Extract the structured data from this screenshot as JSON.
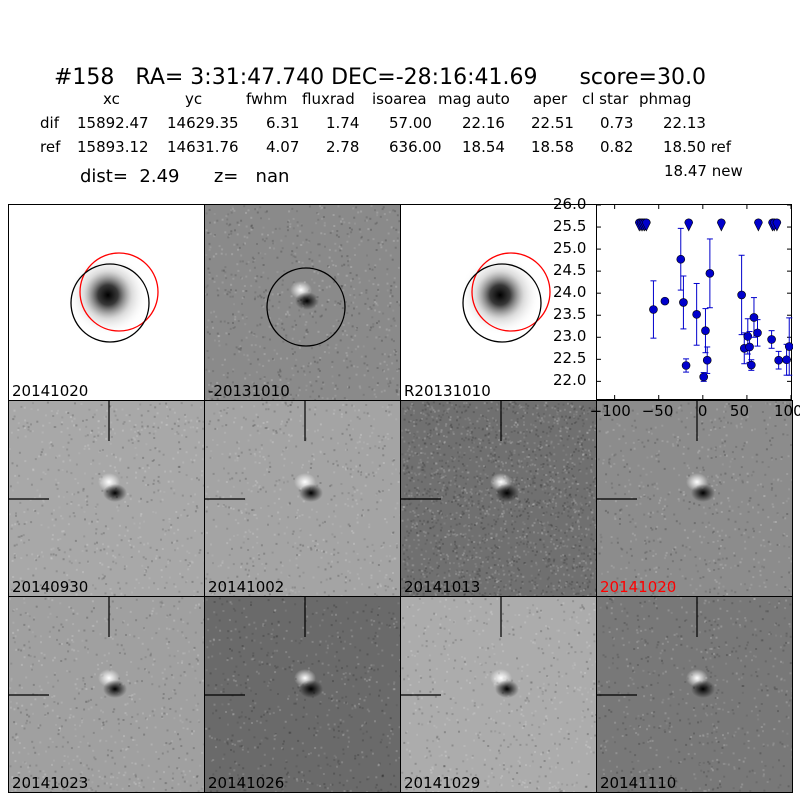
{
  "header": {
    "id": "#158",
    "ra": "RA= 3:31:47.740",
    "dec": "DEC=-28:16:41.69",
    "score": "score=30.0"
  },
  "stats": {
    "columns": [
      "xc",
      "yc",
      "fwhm",
      "fluxrad",
      "isoarea",
      "mag auto",
      "aper",
      "cl star",
      "phmag"
    ],
    "rows": [
      {
        "label": "dif",
        "values": [
          "15892.47",
          "14629.35",
          "6.31",
          "1.74",
          "57.00",
          "22.16",
          "22.51",
          "0.73",
          "22.13"
        ]
      },
      {
        "label": "ref",
        "values": [
          "15893.12",
          "14631.76",
          "4.07",
          "2.78",
          "636.00",
          "18.54",
          "18.58",
          "0.82",
          "18.50 ref"
        ]
      }
    ],
    "new_mag": "18.47 new",
    "dist_label": "dist=",
    "dist_value": "2.49",
    "z_label": "z=",
    "z_value": "nan"
  },
  "top_panels": [
    {
      "label": "20141020",
      "background": "#ffffff",
      "circles": [
        "red",
        "black"
      ]
    },
    {
      "label": "-20131010",
      "background": "#8a8a8a",
      "circles": [
        "black"
      ]
    },
    {
      "label": "R20131010",
      "background": "#ffffff",
      "circles": [
        "red",
        "black"
      ]
    }
  ],
  "stamps": [
    {
      "label": "20140930",
      "background": "#a8a8a8",
      "highlight": false
    },
    {
      "label": "20141002",
      "background": "#a4a4a4",
      "highlight": false
    },
    {
      "label": "20141013",
      "background": "#707070",
      "highlight": false
    },
    {
      "label": "20141020",
      "background": "#8c8c8c",
      "highlight": true
    },
    {
      "label": "20141023",
      "background": "#a0a0a0",
      "highlight": false
    },
    {
      "label": "20141026",
      "background": "#6a6a6a",
      "highlight": false
    },
    {
      "label": "20141029",
      "background": "#acacac",
      "highlight": false
    },
    {
      "label": "20141110",
      "background": "#787878",
      "highlight": false
    }
  ],
  "colors": {
    "highlight_label": "#ff0000",
    "point": "#0000cc"
  },
  "chart_data": {
    "type": "scatter",
    "title": "",
    "xlabel": "",
    "ylabel": "",
    "xlim": [
      -120,
      100
    ],
    "ylim": [
      26.0,
      21.6
    ],
    "y_inverted": true,
    "xticks": [
      -100,
      -50,
      0,
      50,
      100
    ],
    "yticks": [
      22.0,
      22.5,
      23.0,
      23.5,
      24.0,
      24.5,
      25.0,
      25.5,
      26.0
    ],
    "tick_labels_x": [
      "−100",
      "−50",
      "0",
      "50",
      "100"
    ],
    "tick_labels_y": [
      "22.0",
      "22.5",
      "23.0",
      "23.5",
      "24.0",
      "24.5",
      "25.0",
      "25.5",
      "26.0"
    ],
    "detections": [
      {
        "x": -56,
        "y": 23.63,
        "err": 0.65
      },
      {
        "x": -43,
        "y": 23.82,
        "err": 0
      },
      {
        "x": -25,
        "y": 24.77,
        "err": 0.7
      },
      {
        "x": -22,
        "y": 23.79,
        "err": 0.6
      },
      {
        "x": -19,
        "y": 22.36,
        "err": 0.15
      },
      {
        "x": -7,
        "y": 23.52,
        "err": 0.7
      },
      {
        "x": 1,
        "y": 22.1,
        "err": 0.1
      },
      {
        "x": 3,
        "y": 23.15,
        "err": 0.5
      },
      {
        "x": 5,
        "y": 22.48,
        "err": 0.3
      },
      {
        "x": 8,
        "y": 24.45,
        "err": 0.78
      },
      {
        "x": 44,
        "y": 23.96,
        "err": 0.9
      },
      {
        "x": 47,
        "y": 22.75,
        "err": 0.35
      },
      {
        "x": 51,
        "y": 23.02,
        "err": 0.4
      },
      {
        "x": 53,
        "y": 22.78,
        "err": 0.35
      },
      {
        "x": 55,
        "y": 22.37,
        "err": 0.12
      },
      {
        "x": 58,
        "y": 23.45,
        "err": 0.45
      },
      {
        "x": 62,
        "y": 23.1,
        "err": 0.3
      },
      {
        "x": 78,
        "y": 22.95,
        "err": 0.2
      },
      {
        "x": 86,
        "y": 22.48,
        "err": 0.2
      },
      {
        "x": 95,
        "y": 22.49,
        "err": 0.35
      },
      {
        "x": 98,
        "y": 22.79,
        "err": 0.65
      }
    ],
    "upper_limits": [
      {
        "x": -72,
        "y": 25.55
      },
      {
        "x": -70,
        "y": 25.55
      },
      {
        "x": -68,
        "y": 25.55
      },
      {
        "x": -66,
        "y": 25.55
      },
      {
        "x": -64,
        "y": 25.55
      },
      {
        "x": -16,
        "y": 25.55
      },
      {
        "x": 21,
        "y": 25.55
      },
      {
        "x": 63,
        "y": 25.55
      },
      {
        "x": 79,
        "y": 25.55
      },
      {
        "x": 81,
        "y": 25.55
      },
      {
        "x": 84,
        "y": 25.55
      }
    ]
  }
}
